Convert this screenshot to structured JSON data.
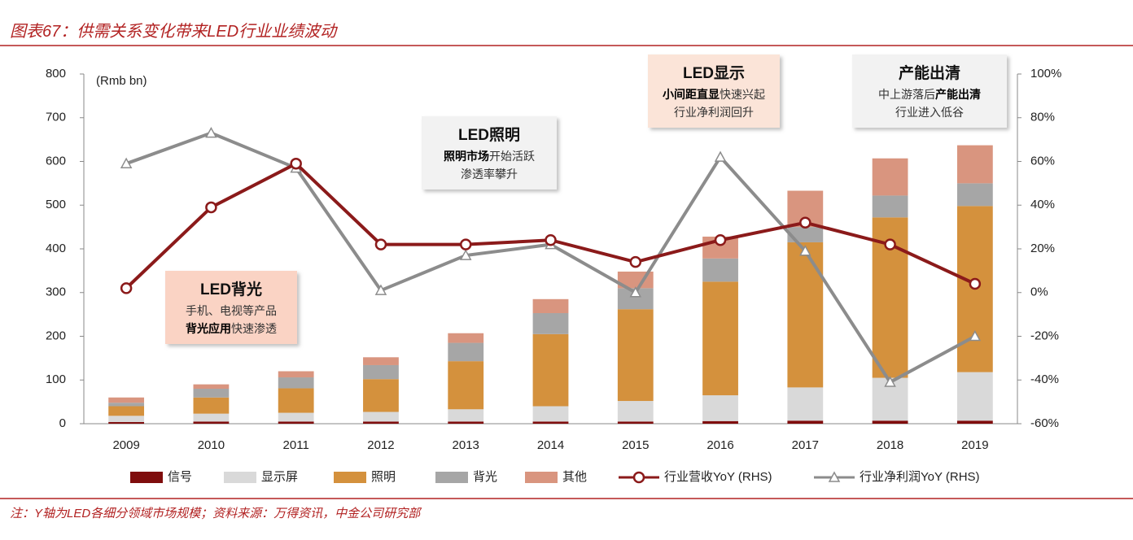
{
  "chart_data": {
    "type": "bar",
    "stacked": true,
    "title": "图表67：供需关系变化带来LED行业业绩波动",
    "y_label": "(Rmb bn)",
    "note": "注：Y轴为LED各细分领域市场规模；资料来源：万得资讯，中金公司研究部",
    "categories": [
      "2009",
      "2010",
      "2011",
      "2012",
      "2013",
      "2014",
      "2015",
      "2016",
      "2017",
      "2018",
      "2019"
    ],
    "ylim": [
      0,
      800
    ],
    "yticks": [
      0,
      100,
      200,
      300,
      400,
      500,
      600,
      700,
      800
    ],
    "y2lim": [
      -60,
      100
    ],
    "y2ticks": [
      {
        "value": -60,
        "label": "-60%"
      },
      {
        "value": -40,
        "label": "-40%"
      },
      {
        "value": -20,
        "label": "-20%"
      },
      {
        "value": 0,
        "label": "0%"
      },
      {
        "value": 20,
        "label": "20%"
      },
      {
        "value": 40,
        "label": "40%"
      },
      {
        "value": 60,
        "label": "60%"
      },
      {
        "value": 80,
        "label": "80%"
      },
      {
        "value": 100,
        "label": "100%"
      }
    ],
    "series": [
      {
        "name": "信号",
        "color": "#7f0d0d",
        "values": [
          4,
          5,
          5,
          5,
          5,
          5,
          5,
          6,
          7,
          7,
          7
        ]
      },
      {
        "name": "显示屏",
        "color": "#d9d9d9",
        "values": [
          14,
          18,
          20,
          22,
          28,
          35,
          47,
          59,
          76,
          98,
          111
        ]
      },
      {
        "name": "照明",
        "color": "#d4913d",
        "values": [
          22,
          37,
          56,
          75,
          110,
          165,
          210,
          260,
          332,
          367,
          380
        ]
      },
      {
        "name": "背光",
        "color": "#a6a6a6",
        "values": [
          8,
          20,
          25,
          32,
          42,
          48,
          48,
          53,
          35,
          50,
          52
        ]
      },
      {
        "name": "其他",
        "color": "#d9957f",
        "values": [
          12,
          10,
          14,
          18,
          22,
          32,
          38,
          50,
          83,
          85,
          87
        ]
      },
      {
        "name": "行业营收YoY (RHS)",
        "type": "line",
        "axis": "y2",
        "marker": "circle",
        "color": "#8b1a1a",
        "values": [
          2,
          39,
          59,
          22,
          22,
          24,
          14,
          24,
          32,
          22,
          4
        ]
      },
      {
        "name": "行业净利润YoY (RHS)",
        "type": "line",
        "axis": "y2",
        "marker": "triangle",
        "color": "#8c8c8c",
        "values": [
          59,
          73,
          57,
          1,
          17,
          22,
          0,
          62,
          19,
          -41,
          -20
        ]
      }
    ],
    "annotations": [
      {
        "title": "LED背光",
        "color": "#fad3c4",
        "lines": [
          [
            {
              "text": "手机、电视等产品"
            }
          ],
          [
            {
              "text": "背光应用",
              "bold": true
            },
            {
              "text": "快速渗透"
            }
          ]
        ]
      },
      {
        "title": "LED照明",
        "color": "#f2f2f2",
        "lines": [
          [
            {
              "text": "照明市场",
              "bold": true
            },
            {
              "text": "开始活跃"
            }
          ],
          [
            {
              "text": "渗透率攀升"
            }
          ]
        ]
      },
      {
        "title": "LED显示",
        "color": "#fbe4d8",
        "lines": [
          [
            {
              "text": "小间距直显",
              "bold": true
            },
            {
              "text": "快速兴起"
            }
          ],
          [
            {
              "text": "行业净利润回升"
            }
          ]
        ]
      },
      {
        "title": "产能出清",
        "color": "#f2f2f2",
        "lines": [
          [
            {
              "text": "中上游落后"
            },
            {
              "text": "产能出清",
              "bold": true
            }
          ],
          [
            {
              "text": "行业进入低谷"
            }
          ]
        ]
      }
    ]
  }
}
